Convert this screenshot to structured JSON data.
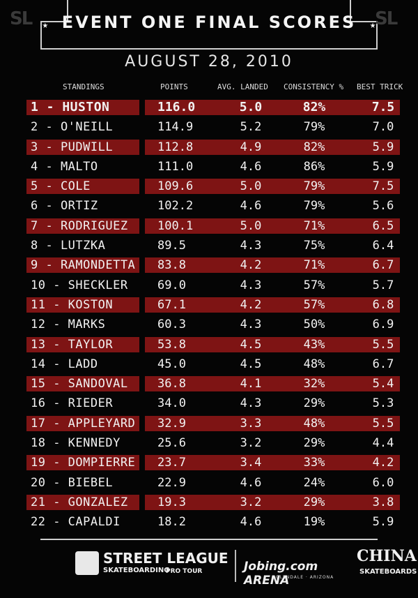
{
  "corner_logo": "SL",
  "title": "EVENT ONE FINAL SCORES",
  "title_star": "★",
  "date": "AUGUST 28, 2010",
  "headers": {
    "standings": "STANDINGS",
    "points": "POINTS",
    "avg_landed": "AVG. LANDED",
    "consistency": "CONSISTENCY %",
    "best_trick": "BEST TRICK"
  },
  "rows": [
    {
      "name": "1 - HUSTON",
      "points": "116.0",
      "avg": "5.0",
      "consistency": "82%",
      "best": "7.5"
    },
    {
      "name": "2 - O'NEILL",
      "points": "114.9",
      "avg": "5.2",
      "consistency": "79%",
      "best": "7.0"
    },
    {
      "name": "3 - PUDWILL",
      "points": "112.8",
      "avg": "4.9",
      "consistency": "82%",
      "best": "5.9"
    },
    {
      "name": "4 - MALTO",
      "points": "111.0",
      "avg": "4.6",
      "consistency": "86%",
      "best": "5.9"
    },
    {
      "name": "5 - COLE",
      "points": "109.6",
      "avg": "5.0",
      "consistency": "79%",
      "best": "7.5"
    },
    {
      "name": "6 - ORTIZ",
      "points": "102.2",
      "avg": "4.6",
      "consistency": "79%",
      "best": "5.6"
    },
    {
      "name": "7 - RODRIGUEZ",
      "points": "100.1",
      "avg": "5.0",
      "consistency": "71%",
      "best": "6.5"
    },
    {
      "name": "8 - LUTZKA",
      "points": "89.5",
      "avg": "4.3",
      "consistency": "75%",
      "best": "6.4"
    },
    {
      "name": "9 - RAMONDETTA",
      "points": "83.8",
      "avg": "4.2",
      "consistency": "71%",
      "best": "6.7"
    },
    {
      "name": "10 - SHECKLER",
      "points": "69.0",
      "avg": "4.3",
      "consistency": "57%",
      "best": "5.7"
    },
    {
      "name": "11 - KOSTON",
      "points": "67.1",
      "avg": "4.2",
      "consistency": "57%",
      "best": "6.8"
    },
    {
      "name": "12 - MARKS",
      "points": "60.3",
      "avg": "4.3",
      "consistency": "50%",
      "best": "6.9"
    },
    {
      "name": "13 - TAYLOR",
      "points": "53.8",
      "avg": "4.5",
      "consistency": "43%",
      "best": "5.5"
    },
    {
      "name": "14 - LADD",
      "points": "45.0",
      "avg": "4.5",
      "consistency": "48%",
      "best": "6.7"
    },
    {
      "name": "15 - SANDOVAL",
      "points": "36.8",
      "avg": "4.1",
      "consistency": "32%",
      "best": "5.4"
    },
    {
      "name": "16 - RIEDER",
      "points": "34.0",
      "avg": "4.3",
      "consistency": "29%",
      "best": "5.3"
    },
    {
      "name": "17 - APPLEYARD",
      "points": "32.9",
      "avg": "3.3",
      "consistency": "48%",
      "best": "5.5"
    },
    {
      "name": "18 - KENNEDY",
      "points": "25.6",
      "avg": "3.2",
      "consistency": "29%",
      "best": "4.4"
    },
    {
      "name": "19 - DOMPIERRE",
      "points": "23.7",
      "avg": "3.4",
      "consistency": "33%",
      "best": "4.2"
    },
    {
      "name": "20 - BIEBEL",
      "points": "22.9",
      "avg": "4.6",
      "consistency": "24%",
      "best": "6.0"
    },
    {
      "name": "21 - GONZALEZ",
      "points": "19.3",
      "avg": "3.2",
      "consistency": "29%",
      "best": "3.8"
    },
    {
      "name": "22 - CAPALDI",
      "points": "18.2",
      "avg": "4.6",
      "consistency": "19%",
      "best": "5.9"
    }
  ],
  "footer": {
    "street_league": "STREET LEAGUE",
    "skateboarding": "SKATEBOARDING",
    "pro_tour": "PRO TOUR",
    "jobing": "Jobing.com ARENA",
    "jobing_location": "GLENDALE · ARIZONA",
    "china": "CHINA",
    "china_sub": "SKATEBOARDS"
  },
  "colors": {
    "background": "#050505",
    "highlight_band": "#7e1414",
    "text": "#f2f2f2"
  }
}
